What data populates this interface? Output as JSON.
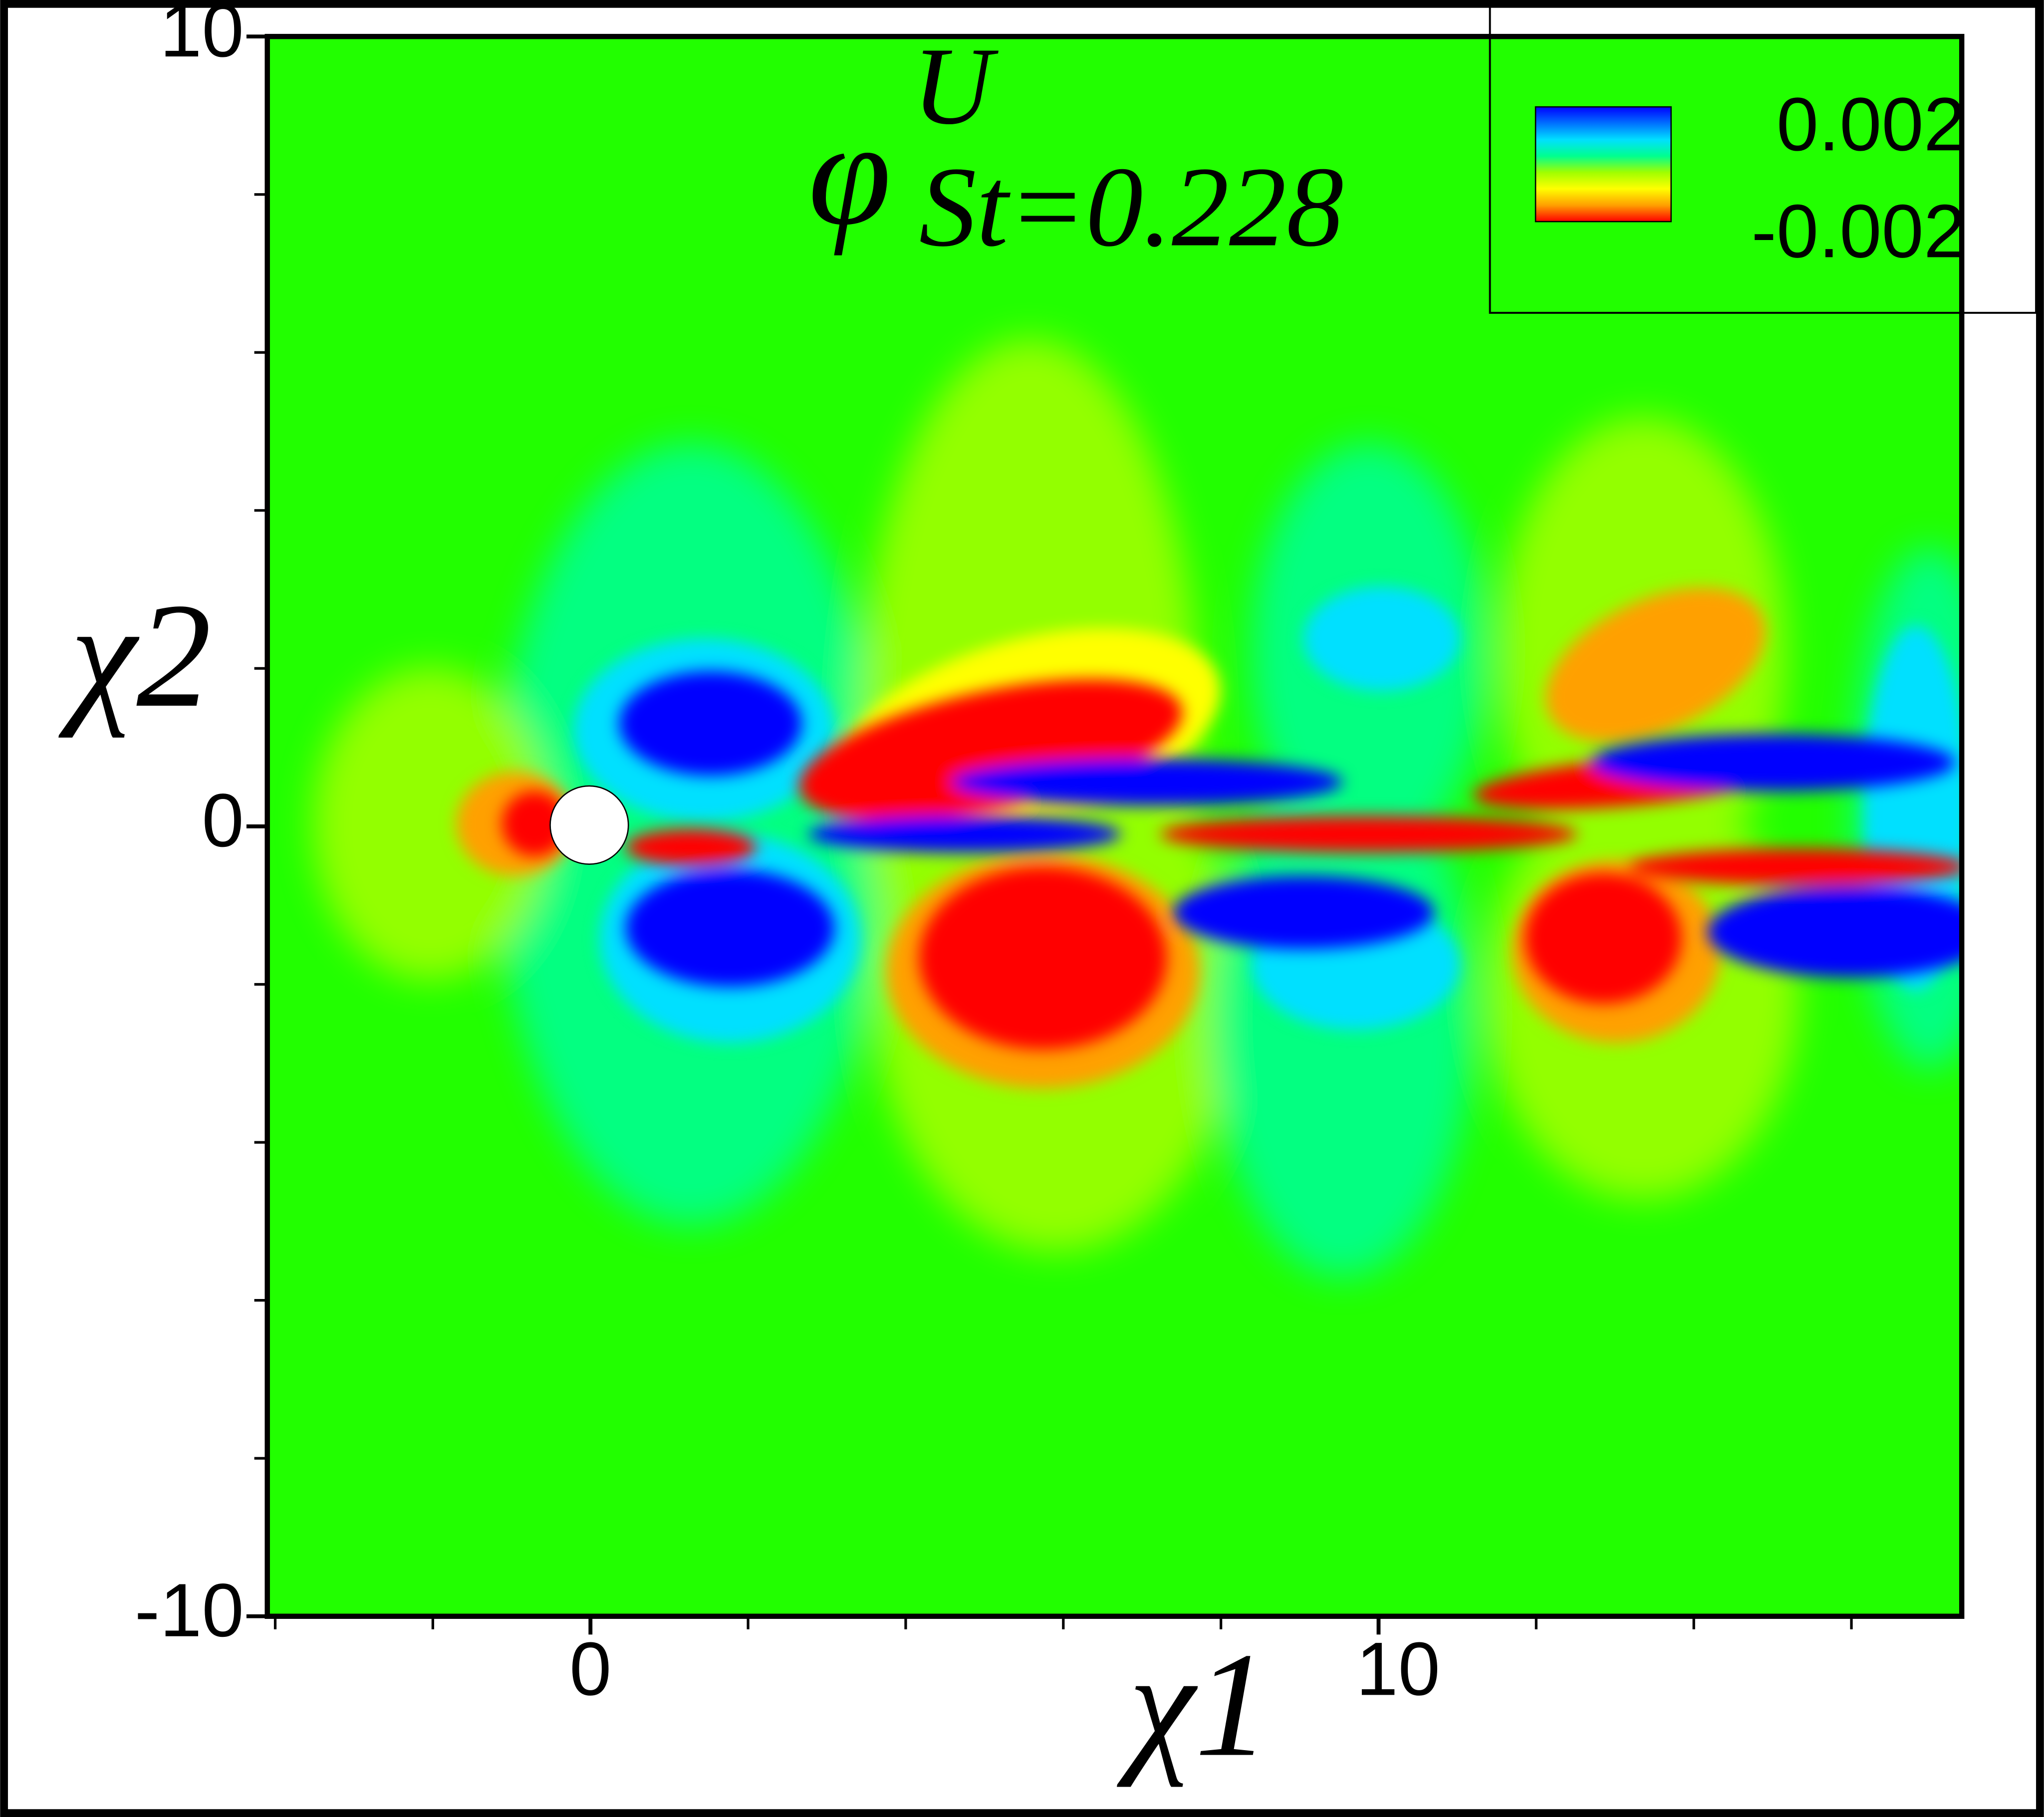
{
  "chart_data": {
    "type": "contour",
    "title": {
      "base": "φ",
      "superscript": "U",
      "subscript": "St=0.228"
    },
    "x_label": "χ1",
    "y_label": "χ2",
    "xlim": [
      -4.1,
      17.4
    ],
    "ylim": [
      -10,
      10
    ],
    "xticks": [
      0,
      10
    ],
    "yticks": [
      -10,
      0,
      10
    ],
    "xminor_ticks": [
      -4,
      -2,
      2,
      4,
      6,
      8,
      12,
      14,
      16
    ],
    "yminor_ticks": [
      -8,
      -6,
      -4,
      -2,
      2,
      4,
      6,
      8
    ],
    "colorbar": {
      "max": 0.002,
      "min": -0.002,
      "colors": [
        "#0000ff",
        "#0070ff",
        "#00e0ff",
        "#00ff90",
        "#a0ff00",
        "#ffff00",
        "#ffa000",
        "#ff0000"
      ]
    }
  }
}
